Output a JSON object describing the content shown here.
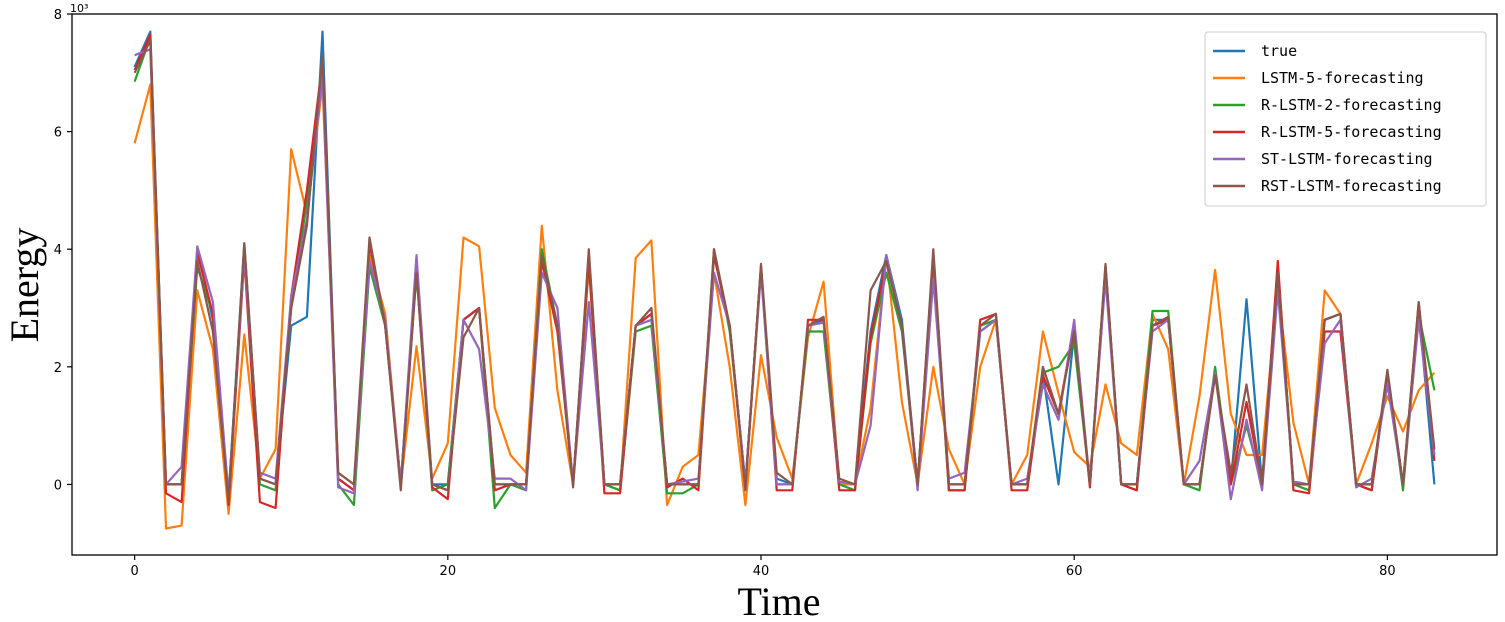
{
  "chart_data": {
    "type": "line",
    "title": "",
    "xlabel": "Time",
    "ylabel": "Energy",
    "y_scale_label": "10³",
    "xlim": [
      -4,
      87
    ],
    "ylim": [
      -1.2,
      8
    ],
    "xticks": [
      0,
      20,
      40,
      60,
      80
    ],
    "yticks": [
      0,
      2,
      4,
      6,
      8
    ],
    "grid": false,
    "legend_position": "top-right",
    "series": [
      {
        "name": "true",
        "color": "#1f77b4",
        "values": [
          7.1,
          7.7,
          0,
          0,
          4,
          2.8,
          -0.2,
          4.1,
          0.1,
          0,
          2.7,
          2.85,
          7.7,
          0.1,
          -0.1,
          4.1,
          2.7,
          0,
          3.7,
          0,
          0,
          2.8,
          3,
          0,
          0,
          0,
          3.9,
          2.7,
          0,
          3.9,
          0,
          0,
          2.7,
          2.9,
          0,
          0,
          0,
          3.9,
          2.7,
          0,
          3.7,
          0.1,
          0,
          2.7,
          2.8,
          0,
          0,
          2.6,
          3.9,
          2.8,
          0,
          3.9,
          0,
          0,
          2.6,
          2.8,
          0,
          0,
          1.9,
          0,
          2.6,
          0,
          3.7,
          0,
          0,
          2.8,
          2.8,
          0,
          0,
          1.9,
          0,
          3.15,
          0,
          3.7,
          0,
          0,
          2.8,
          2.9,
          0,
          0,
          1.9,
          0,
          3,
          0
        ]
      },
      {
        "name": "LSTM-5-forecasting",
        "color": "#ff7f0e",
        "values": [
          5.8,
          6.8,
          -0.75,
          -0.7,
          3.3,
          2.3,
          -0.5,
          2.55,
          0.1,
          0.6,
          5.7,
          4.6,
          6.8,
          0.2,
          0,
          3.9,
          2.9,
          0,
          2.35,
          0.1,
          0.7,
          4.2,
          4.05,
          1.3,
          0.5,
          0.2,
          4.4,
          1.6,
          0,
          3.7,
          0,
          -0.1,
          3.85,
          4.15,
          -0.35,
          0.3,
          0.5,
          3.6,
          2,
          -0.35,
          2.2,
          0.8,
          0.1,
          2.5,
          3.45,
          0,
          0,
          1.3,
          3.9,
          1.4,
          0,
          2,
          0.6,
          0,
          2,
          2.8,
          0,
          0.5,
          2.6,
          1.55,
          0.55,
          0.3,
          1.7,
          0.7,
          0.5,
          2.9,
          2.3,
          0,
          1.5,
          3.65,
          1.2,
          0.5,
          0.5,
          3.35,
          1.05,
          0,
          3.3,
          2.9,
          0,
          0.7,
          1.5,
          0.9,
          1.6,
          1.9
        ]
      },
      {
        "name": "R-LSTM-2-forecasting",
        "color": "#2ca02c",
        "values": [
          6.85,
          7.6,
          0,
          0,
          3.7,
          2.9,
          -0.2,
          4,
          0,
          -0.1,
          3,
          4.8,
          7.1,
          0,
          -0.35,
          3.7,
          2.7,
          0,
          3.6,
          -0.1,
          0,
          2.8,
          3,
          -0.4,
          0,
          -0.1,
          4,
          2.7,
          0,
          3.8,
          0,
          -0.1,
          2.6,
          2.7,
          -0.15,
          -0.15,
          0,
          4,
          2.6,
          0,
          3.7,
          0,
          0,
          2.6,
          2.6,
          0,
          -0.1,
          2.4,
          3.6,
          2.6,
          0,
          3.8,
          -0.1,
          -0.1,
          2.7,
          2.8,
          0,
          0,
          1.9,
          2,
          2.4,
          0,
          3.7,
          0,
          -0.1,
          2.95,
          2.95,
          0,
          -0.1,
          2,
          0,
          1,
          0,
          3.7,
          0,
          -0.1,
          2.8,
          2.9,
          0,
          -0.1,
          1.9,
          -0.1,
          2.9,
          1.6
        ]
      },
      {
        "name": "R-LSTM-5-forecasting",
        "color": "#d62728",
        "values": [
          7.05,
          7.65,
          -0.15,
          -0.3,
          3.95,
          2.9,
          -0.35,
          3.85,
          -0.3,
          -0.4,
          3.2,
          5,
          7.2,
          0.1,
          -0.1,
          4.1,
          2.7,
          0,
          3.7,
          -0.05,
          -0.25,
          2.8,
          3,
          -0.1,
          0,
          0,
          3.8,
          2.6,
          0,
          3.8,
          -0.15,
          -0.15,
          2.7,
          2.9,
          -0.05,
          0.1,
          -0.1,
          3.9,
          2.7,
          0,
          3.7,
          -0.1,
          -0.1,
          2.8,
          2.8,
          -0.1,
          -0.1,
          2.5,
          3.8,
          2.7,
          0,
          3.9,
          -0.1,
          -0.1,
          2.8,
          2.9,
          -0.1,
          -0.1,
          1.85,
          1.2,
          2.7,
          -0.05,
          3.7,
          0,
          -0.1,
          2.7,
          2.8,
          0,
          0,
          1.9,
          0,
          1.4,
          0,
          3.8,
          -0.1,
          -0.15,
          2.6,
          2.6,
          0,
          -0.1,
          1.9,
          0,
          3.1,
          0.4
        ]
      },
      {
        "name": "ST-LSTM-forecasting",
        "color": "#9467bd",
        "values": [
          7.3,
          7.4,
          0,
          0.3,
          4.05,
          3.1,
          -0.2,
          3.9,
          0.2,
          0.1,
          3.2,
          4.5,
          6.95,
          -0.05,
          -0.15,
          3.8,
          2.8,
          0,
          3.9,
          0,
          -0.1,
          2.8,
          2.3,
          0.1,
          0.1,
          -0.1,
          3.6,
          3,
          0,
          3.1,
          0,
          0,
          2.7,
          2.8,
          0,
          0.05,
          0.1,
          3.6,
          2.7,
          0,
          3.6,
          0,
          0,
          2.7,
          2.75,
          0.05,
          0,
          1,
          3.9,
          2.7,
          -0.1,
          3.5,
          0.1,
          0.2,
          2.6,
          2.8,
          0,
          0.1,
          1.7,
          1.1,
          2.8,
          0,
          3.5,
          0,
          0,
          2.6,
          2.8,
          0,
          0.4,
          1.9,
          -0.25,
          1.1,
          -0.1,
          3.3,
          0.05,
          0,
          2.4,
          2.8,
          -0.05,
          0.1,
          1.7,
          0,
          2.8,
          0.5
        ]
      },
      {
        "name": "RST-LSTM-forecasting",
        "color": "#8c564b",
        "values": [
          7,
          7.55,
          0,
          0,
          3.8,
          2.6,
          -0.3,
          4.1,
          0.1,
          0,
          3,
          4.4,
          7.3,
          0.2,
          0,
          4.2,
          2.7,
          -0.1,
          3.6,
          0,
          -0.1,
          2.5,
          3,
          0,
          0,
          0,
          3.9,
          2.7,
          -0.05,
          4,
          0,
          0,
          2.7,
          3,
          0,
          0,
          0,
          4,
          2.7,
          -0.1,
          3.75,
          0.2,
          0,
          2.7,
          2.85,
          0.1,
          0,
          3.3,
          3.8,
          2.7,
          0,
          4,
          0,
          0,
          2.7,
          2.9,
          0,
          0,
          2,
          1.2,
          2.6,
          0,
          3.75,
          0,
          0,
          2.7,
          2.85,
          0,
          0,
          1.85,
          0.2,
          1.7,
          0,
          3.6,
          0,
          0,
          2.8,
          2.9,
          0,
          0,
          1.95,
          0,
          3.1,
          0.6
        ]
      }
    ]
  }
}
